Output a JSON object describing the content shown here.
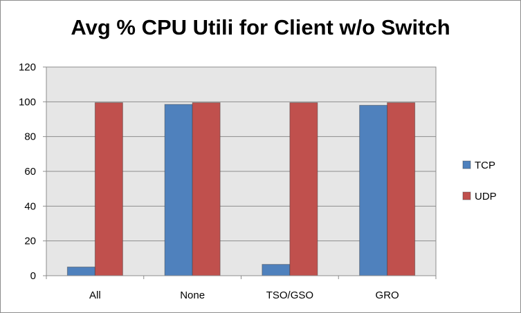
{
  "chart_data": {
    "type": "bar",
    "title": "Avg % CPU Utili for Client w/o Switch",
    "categories": [
      "All",
      "None",
      "TSO/GSO",
      "GRO"
    ],
    "series": [
      {
        "name": "TCP",
        "color": "#4f81bd",
        "values": [
          5,
          98.5,
          6.5,
          98
        ]
      },
      {
        "name": "UDP",
        "color": "#c0504d",
        "values": [
          99.5,
          99.5,
          99.5,
          99.5
        ]
      }
    ],
    "ylim": [
      0,
      120
    ],
    "yticks": [
      "0",
      "20",
      "40",
      "60",
      "80",
      "100",
      "120"
    ],
    "grid": true,
    "legend": "right",
    "plot_background": "#e6e6e6"
  }
}
